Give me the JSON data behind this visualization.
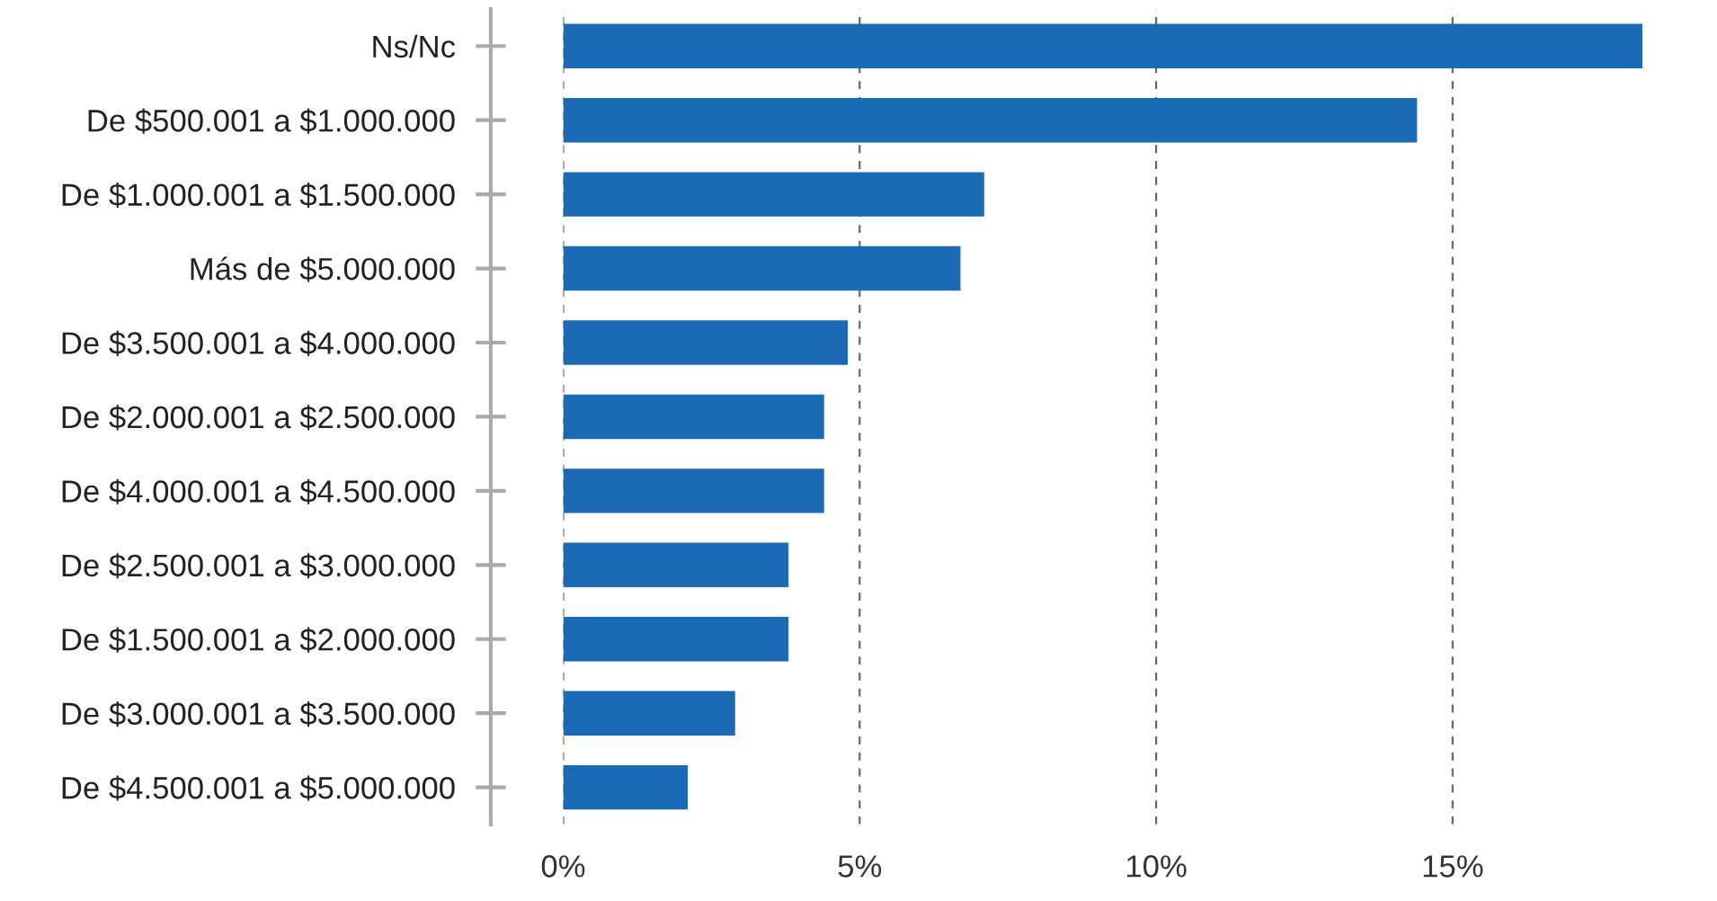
{
  "chart_data": {
    "type": "bar",
    "orientation": "horizontal",
    "categories": [
      "Ns/Nc",
      "De $500.001 a $1.000.000",
      "De $1.000.001 a $1.500.000",
      "Más de $5.000.000",
      "De $3.500.001 a $4.000.000",
      "De $2.000.001 a $2.500.000",
      "De $4.000.001 a $4.500.000",
      "De $2.500.001 a $3.000.000",
      "De $1.500.001 a $2.000.000",
      "De $3.000.001 a $3.500.000",
      "De $4.500.001 a $5.000.000"
    ],
    "values": [
      18.2,
      14.4,
      7.1,
      6.7,
      4.8,
      4.4,
      4.4,
      3.8,
      3.8,
      2.9,
      2.1
    ],
    "color": "#1a6ab5",
    "xlim": [
      0,
      18.3
    ],
    "xticks": [
      {
        "value": 0,
        "label": "0%"
      },
      {
        "value": 5,
        "label": "5%"
      },
      {
        "value": 10,
        "label": "10%"
      },
      {
        "value": 15,
        "label": "15%"
      }
    ],
    "grid": "x"
  }
}
